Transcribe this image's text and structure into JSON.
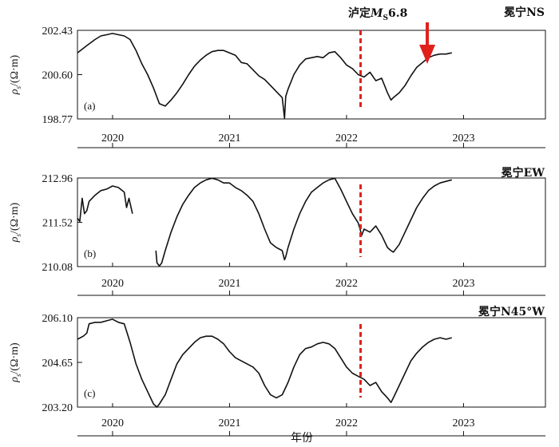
{
  "figure": {
    "xlabel": "年份",
    "ylabel_symbol": "ρ",
    "ylabel_sub": "s",
    "ylabel_unit": "/(Ω·m)",
    "event_label": {
      "prefix": "泸定",
      "mag": "M",
      "mag_sub": "S",
      "value": "6.8"
    },
    "event_year": 2022.69,
    "event_line_year": 2022.12,
    "line_color": "#111111",
    "event_line_color": "#e0201b",
    "arrow_color": "#e0201b"
  },
  "chart_data": [
    {
      "type": "line",
      "panel": "(a)",
      "station": "冕宁NS",
      "x_ticks": [
        "2020",
        "2021",
        "2022",
        "2023"
      ],
      "y_ticks": [
        "202.43",
        "200.60",
        "198.77"
      ],
      "ylim": [
        198.77,
        202.43
      ],
      "xlim": [
        2019.7,
        2023.7
      ],
      "series": [
        {
          "x": [
            2019.7,
            2019.78,
            2019.85,
            2019.9,
            2019.95,
            2020.0,
            2020.05,
            2020.1,
            2020.15,
            2020.2,
            2020.25,
            2020.3,
            2020.35,
            2020.4,
            2020.45,
            2020.5,
            2020.55,
            2020.6,
            2020.65,
            2020.7,
            2020.75,
            2020.8,
            2020.85,
            2020.9,
            2020.95,
            2021.0,
            2021.05,
            2021.1,
            2021.15,
            2021.2,
            2021.25,
            2021.3,
            2021.35,
            2021.38,
            2021.42,
            2021.45,
            2021.47,
            2021.48,
            2021.5,
            2021.55,
            2021.6,
            2021.65,
            2021.7,
            2021.75,
            2021.8,
            2021.85,
            2021.9,
            2021.95,
            2022.0,
            2022.05,
            2022.1,
            2022.15,
            2022.2,
            2022.25,
            2022.3,
            2022.35,
            2022.38,
            2022.4,
            2022.45,
            2022.5,
            2022.55,
            2022.6,
            2022.65,
            2022.7,
            2022.75,
            2022.8,
            2022.85,
            2022.9
          ],
          "y": [
            201.5,
            201.8,
            202.05,
            202.2,
            202.25,
            202.3,
            202.25,
            202.2,
            202.05,
            201.6,
            201.05,
            200.6,
            200.05,
            199.4,
            199.3,
            199.55,
            199.85,
            200.2,
            200.6,
            200.95,
            201.2,
            201.4,
            201.55,
            201.6,
            201.6,
            201.5,
            201.4,
            201.1,
            201.05,
            200.8,
            200.55,
            200.4,
            200.15,
            200.0,
            199.8,
            199.65,
            198.8,
            199.7,
            200.0,
            200.6,
            201.0,
            201.25,
            201.3,
            201.35,
            201.3,
            201.5,
            201.55,
            201.3,
            201.0,
            200.85,
            200.6,
            200.5,
            200.7,
            200.35,
            200.45,
            199.85,
            199.55,
            199.65,
            199.85,
            200.15,
            200.55,
            200.9,
            201.1,
            201.3,
            201.4,
            201.45,
            201.45,
            201.5
          ]
        }
      ]
    },
    {
      "type": "line",
      "panel": "(b)",
      "station": "冕宁EW",
      "x_ticks": [
        "2020",
        "2021",
        "2022",
        "2023"
      ],
      "y_ticks": [
        "212.96",
        "211.52",
        "210.08"
      ],
      "ylim": [
        210.08,
        212.96
      ],
      "xlim": [
        2019.7,
        2023.7
      ],
      "series": [
        {
          "x": [
            2019.7,
            2019.72,
            2019.74,
            2019.76,
            2019.78,
            2019.8,
            2019.85,
            2019.9,
            2019.95,
            2020.0,
            2020.05,
            2020.1,
            2020.12,
            2020.14,
            2020.17
          ],
          "y": [
            211.65,
            211.55,
            212.3,
            211.8,
            211.9,
            212.2,
            212.4,
            212.55,
            212.6,
            212.7,
            212.65,
            212.5,
            212.0,
            212.3,
            211.8
          ]
        },
        {
          "x": [
            2020.37,
            2020.38,
            2020.4,
            2020.42,
            2020.45,
            2020.5,
            2020.55,
            2020.6,
            2020.65,
            2020.7,
            2020.75,
            2020.8,
            2020.85,
            2020.9,
            2020.95,
            2021.0,
            2021.05,
            2021.1,
            2021.15,
            2021.2,
            2021.25,
            2021.3,
            2021.35,
            2021.4,
            2021.45,
            2021.47,
            2021.48,
            2021.5,
            2021.55,
            2021.6,
            2021.65,
            2021.7,
            2021.75,
            2021.8,
            2021.85,
            2021.9,
            2021.95,
            2022.0,
            2022.05,
            2022.1,
            2022.13,
            2022.15,
            2022.2,
            2022.25,
            2022.3,
            2022.35,
            2022.38,
            2022.4,
            2022.45,
            2022.5,
            2022.55,
            2022.6,
            2022.65,
            2022.7,
            2022.75,
            2022.8,
            2022.85,
            2022.9
          ],
          "y": [
            210.6,
            210.2,
            210.1,
            210.2,
            210.6,
            211.2,
            211.7,
            212.1,
            212.4,
            212.65,
            212.8,
            212.9,
            212.95,
            212.9,
            212.8,
            212.8,
            212.65,
            212.55,
            212.4,
            212.2,
            211.8,
            211.3,
            210.85,
            210.7,
            210.6,
            210.3,
            210.4,
            210.7,
            211.3,
            211.8,
            212.2,
            212.5,
            212.65,
            212.8,
            212.9,
            212.95,
            212.6,
            212.2,
            211.8,
            211.5,
            211.1,
            211.3,
            211.2,
            211.4,
            211.1,
            210.7,
            210.6,
            210.55,
            210.8,
            211.2,
            211.6,
            212.0,
            212.3,
            212.55,
            212.7,
            212.8,
            212.85,
            212.9
          ]
        }
      ]
    },
    {
      "type": "line",
      "panel": "(c)",
      "station": "冕宁N45°W",
      "x_ticks": [
        "2020",
        "2021",
        "2022",
        "2023"
      ],
      "y_ticks": [
        "206.10",
        "204.65",
        "203.20"
      ],
      "ylim": [
        203.2,
        206.1
      ],
      "xlim": [
        2019.7,
        2023.7
      ],
      "series": [
        {
          "x": [
            2019.7,
            2019.75,
            2019.78,
            2019.8,
            2019.85,
            2019.9,
            2019.95,
            2020.0,
            2020.05,
            2020.1,
            2020.15,
            2020.2,
            2020.25,
            2020.3,
            2020.35,
            2020.38,
            2020.4,
            2020.45,
            2020.5,
            2020.55,
            2020.6,
            2020.65,
            2020.7,
            2020.75,
            2020.8,
            2020.85,
            2020.9,
            2020.95,
            2021.0,
            2021.05,
            2021.1,
            2021.15,
            2021.2,
            2021.25,
            2021.3,
            2021.35,
            2021.4,
            2021.45,
            2021.5,
            2021.55,
            2021.6,
            2021.65,
            2021.7,
            2021.75,
            2021.8,
            2021.85,
            2021.9,
            2021.95,
            2022.0,
            2022.05,
            2022.1,
            2022.15,
            2022.2,
            2022.25,
            2022.3,
            2022.35,
            2022.38,
            2022.4,
            2022.45,
            2022.5,
            2022.55,
            2022.6,
            2022.65,
            2022.7,
            2022.75,
            2022.8,
            2022.85,
            2022.9
          ],
          "y": [
            205.4,
            205.5,
            205.6,
            205.9,
            205.95,
            205.95,
            206.0,
            206.05,
            205.95,
            205.9,
            205.3,
            204.6,
            204.1,
            203.7,
            203.3,
            203.2,
            203.3,
            203.6,
            204.1,
            204.6,
            204.9,
            205.1,
            205.3,
            205.45,
            205.5,
            205.5,
            205.4,
            205.25,
            205.0,
            204.8,
            204.7,
            204.6,
            204.5,
            204.3,
            203.9,
            203.6,
            203.5,
            203.6,
            204.0,
            204.5,
            204.9,
            205.1,
            205.15,
            205.25,
            205.3,
            205.25,
            205.1,
            204.8,
            204.5,
            204.3,
            204.2,
            204.1,
            203.9,
            204.0,
            203.7,
            203.5,
            203.35,
            203.5,
            203.9,
            204.3,
            204.7,
            204.95,
            205.15,
            205.3,
            205.4,
            205.45,
            205.4,
            205.45
          ]
        }
      ]
    }
  ]
}
